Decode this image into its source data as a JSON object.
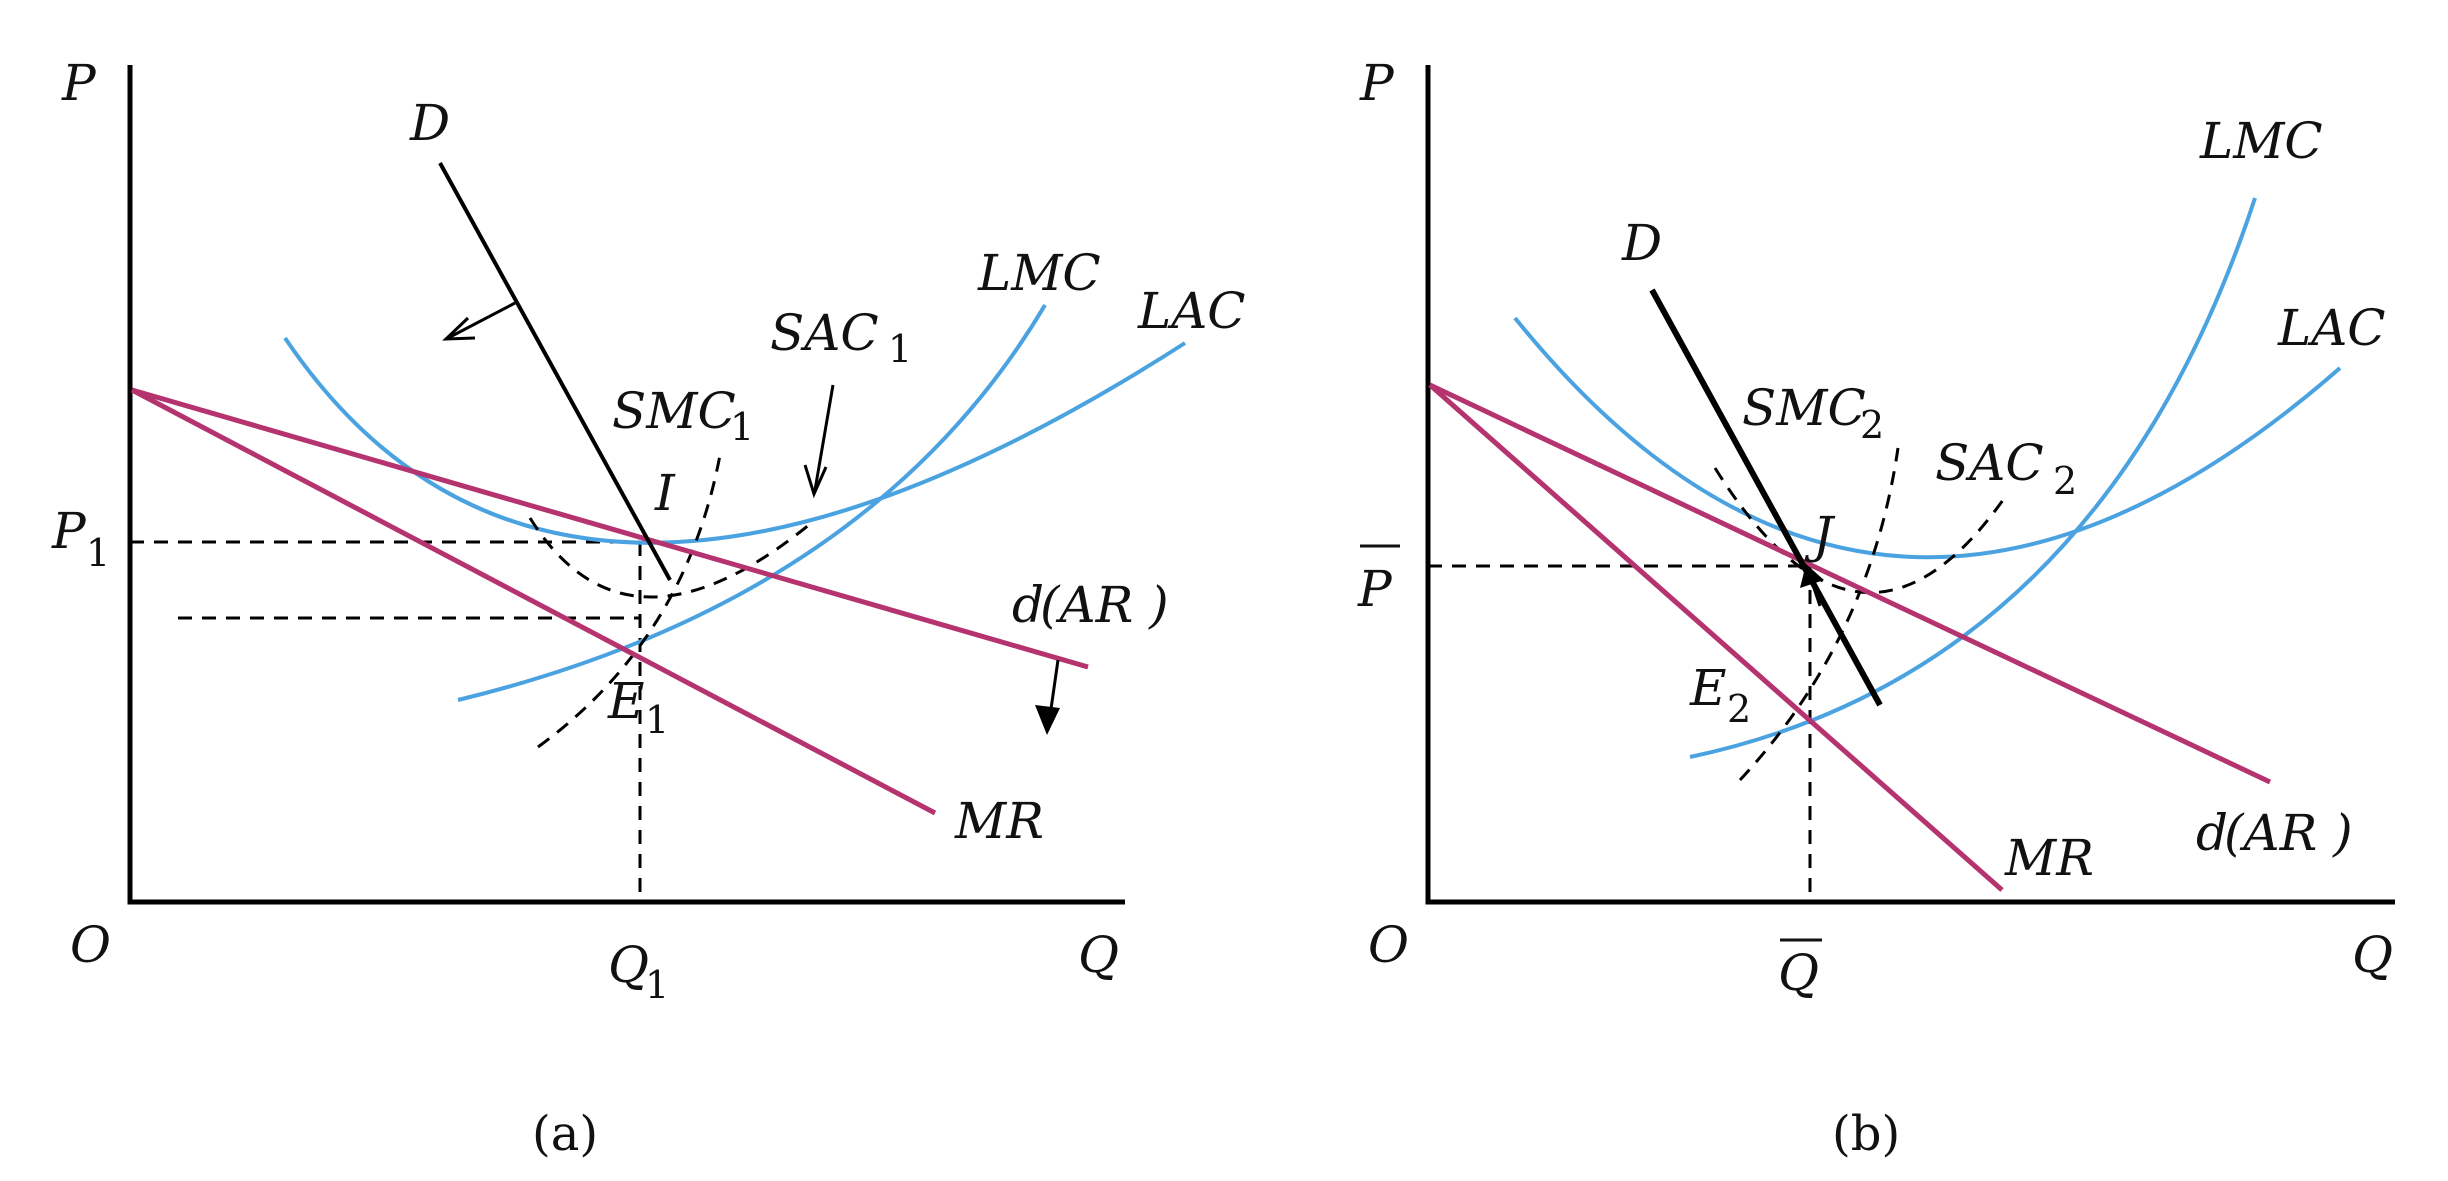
{
  "panel_a": {
    "caption": "(a)",
    "axis_y": "P",
    "axis_x": "Q",
    "origin": "O",
    "price_label": "P",
    "price_sub": "1",
    "qty_label": "Q",
    "qty_sub": "1",
    "demand": "D",
    "lmc": "LMC",
    "lac": "LAC",
    "sac": "SAC",
    "sac_sub": "1",
    "smc": "SMC",
    "smc_sub": "1",
    "point_i": "I",
    "point_e": "E",
    "point_e_sub": "1",
    "d_ar": "d",
    "d_ar_paren": "(AR )",
    "mr": "MR"
  },
  "panel_b": {
    "caption": "(b)",
    "axis_y": "P",
    "axis_x": "Q",
    "origin": "O",
    "price_label": "P",
    "qty_label": "Q",
    "demand": "D",
    "lmc": "LMC",
    "lac": "LAC",
    "sac": "SAC",
    "sac_sub": "2",
    "smc": "SMC",
    "smc_sub": "2",
    "point_j": "J",
    "point_e": "E",
    "point_e_sub": "2",
    "d_ar": "d",
    "d_ar_paren": "(AR )",
    "mr": "MR"
  },
  "colors": {
    "cost_curves": "#4aa3e0",
    "demand_revenue": "#b5336f",
    "axes": "#000000"
  }
}
